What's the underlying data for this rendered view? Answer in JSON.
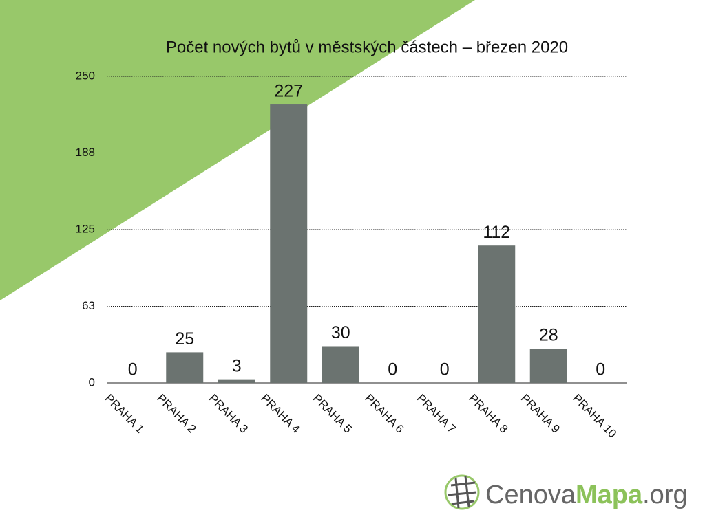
{
  "chart_data": {
    "type": "bar",
    "title": "Počet nových bytů v městských částech – březen 2020",
    "categories": [
      "PRAHA 1",
      "PRAHA 2",
      "PRAHA 3",
      "PRAHA 4",
      "PRAHA 5",
      "PRAHA 6",
      "PRAHA 7",
      "PRAHA 8",
      "PRAHA 9",
      "PRAHA 10"
    ],
    "values": [
      0,
      25,
      3,
      227,
      30,
      0,
      0,
      112,
      28,
      0
    ],
    "color": "#6b7370",
    "ylim": [
      0,
      250
    ],
    "yticks": [
      0,
      {
        "value": 62.5,
        "label": "63"
      },
      125,
      {
        "value": 187.5,
        "label": "188"
      },
      250
    ],
    "grid": true
  },
  "logo": {
    "parts": [
      "Cenova",
      "Mapa",
      ".org"
    ]
  }
}
